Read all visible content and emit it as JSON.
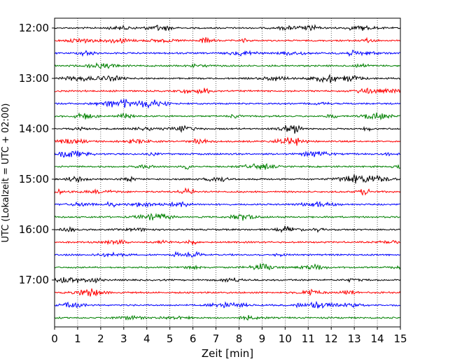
{
  "chart_data": {
    "type": "line",
    "title": "",
    "xlabel": "Zeit  [min]",
    "ylabel": "UTC (Lokalzeit = UTC + 02:00)",
    "xlim": [
      0,
      15
    ],
    "x_ticks": [
      "0",
      "1",
      "2",
      "3",
      "4",
      "5",
      "6",
      "7",
      "8",
      "9",
      "10",
      "11",
      "12",
      "13",
      "14",
      "15"
    ],
    "y_ticks": [
      "12:00",
      "13:00",
      "14:00",
      "15:00",
      "16:00",
      "17:00"
    ],
    "grid": "vertical dotted",
    "trace_colors": [
      "#000000",
      "#ff0000",
      "#0000ff",
      "#008000"
    ],
    "traces": [
      {
        "start": "12:00",
        "color": "#000000"
      },
      {
        "start": "12:15",
        "color": "#ff0000"
      },
      {
        "start": "12:30",
        "color": "#0000ff"
      },
      {
        "start": "12:45",
        "color": "#008000"
      },
      {
        "start": "13:00",
        "color": "#000000"
      },
      {
        "start": "13:15",
        "color": "#ff0000"
      },
      {
        "start": "13:30",
        "color": "#0000ff"
      },
      {
        "start": "13:45",
        "color": "#008000"
      },
      {
        "start": "14:00",
        "color": "#000000"
      },
      {
        "start": "14:15",
        "color": "#ff0000"
      },
      {
        "start": "14:30",
        "color": "#0000ff"
      },
      {
        "start": "14:45",
        "color": "#008000"
      },
      {
        "start": "15:00",
        "color": "#000000"
      },
      {
        "start": "15:15",
        "color": "#ff0000"
      },
      {
        "start": "15:30",
        "color": "#0000ff"
      },
      {
        "start": "15:45",
        "color": "#008000"
      },
      {
        "start": "16:00",
        "color": "#000000"
      },
      {
        "start": "16:15",
        "color": "#ff0000"
      },
      {
        "start": "16:30",
        "color": "#0000ff"
      },
      {
        "start": "16:45",
        "color": "#008000"
      },
      {
        "start": "17:00",
        "color": "#000000"
      },
      {
        "start": "17:15",
        "color": "#ff0000"
      },
      {
        "start": "17:30",
        "color": "#0000ff"
      },
      {
        "start": "17:45",
        "color": "#008000"
      }
    ]
  }
}
